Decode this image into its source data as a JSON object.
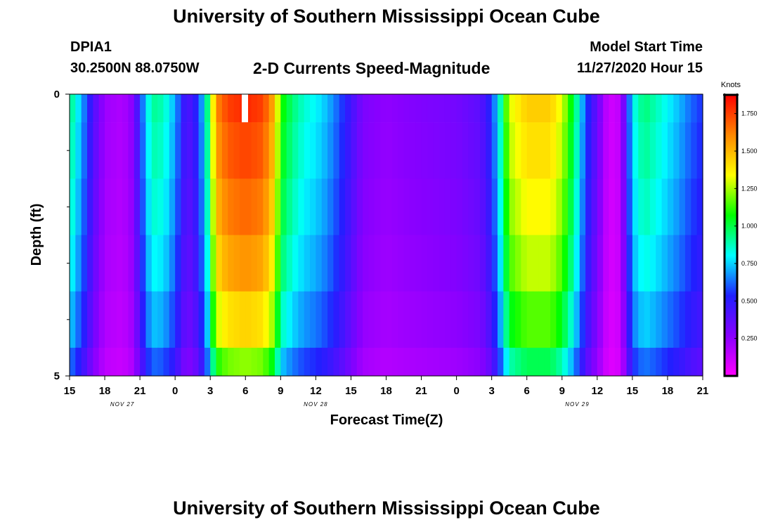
{
  "header": {
    "title": "University of Southern Mississippi Ocean Cube",
    "station": "DPIA1",
    "coordinates": "30.2500N 88.0750W",
    "chart_title": "2-D Currents Speed-Magnitude",
    "model_start_label": "Model Start Time",
    "model_start_value": "11/27/2020 Hour 15"
  },
  "footer": {
    "title": "University of Southern Mississippi Ocean Cube"
  },
  "chart_data": {
    "type": "heatmap",
    "title": "2-D Currents Speed-Magnitude",
    "xlabel": "Forecast Time(Z)",
    "ylabel": "Depth (ft)",
    "x_start_hour": 15,
    "x_end_hour": 69,
    "x_ticks": [
      {
        "hour": 15,
        "label": "15"
      },
      {
        "hour": 18,
        "label": "18"
      },
      {
        "hour": 21,
        "label": "21"
      },
      {
        "hour": 24,
        "label": "0"
      },
      {
        "hour": 27,
        "label": "3"
      },
      {
        "hour": 30,
        "label": "6"
      },
      {
        "hour": 33,
        "label": "9"
      },
      {
        "hour": 36,
        "label": "12"
      },
      {
        "hour": 39,
        "label": "15"
      },
      {
        "hour": 42,
        "label": "18"
      },
      {
        "hour": 45,
        "label": "21"
      },
      {
        "hour": 48,
        "label": "0"
      },
      {
        "hour": 51,
        "label": "3"
      },
      {
        "hour": 54,
        "label": "6"
      },
      {
        "hour": 57,
        "label": "9"
      },
      {
        "hour": 60,
        "label": "12"
      },
      {
        "hour": 63,
        "label": "15"
      },
      {
        "hour": 66,
        "label": "18"
      },
      {
        "hour": 69,
        "label": "21"
      }
    ],
    "date_labels": [
      {
        "hour": 19.5,
        "label": "NOV 27"
      },
      {
        "hour": 36,
        "label": "NOV 28"
      },
      {
        "hour": 58.3,
        "label": "NOV 29"
      }
    ],
    "y_range": [
      0,
      5
    ],
    "y_tick_labels": [
      {
        "value": 0,
        "label": "0"
      },
      {
        "value": 5,
        "label": "5"
      }
    ],
    "y_minor_ticks": [
      1,
      2,
      3,
      4
    ],
    "depth_levels": 5,
    "speed_profile_knots": [
      {
        "hour": 15.0,
        "v": 0.95
      },
      {
        "hour": 16.0,
        "v": 0.72
      },
      {
        "hour": 17.0,
        "v": 0.42
      },
      {
        "hour": 18.0,
        "v": 0.22
      },
      {
        "hour": 19.5,
        "v": 0.18
      },
      {
        "hour": 20.5,
        "v": 0.28
      },
      {
        "hour": 21.0,
        "v": 0.55
      },
      {
        "hour": 22.0,
        "v": 0.92
      },
      {
        "hour": 23.0,
        "v": 0.88
      },
      {
        "hour": 24.0,
        "v": 0.7
      },
      {
        "hour": 25.0,
        "v": 0.4
      },
      {
        "hour": 26.0,
        "v": 0.55
      },
      {
        "hour": 26.8,
        "v": 0.95
      },
      {
        "hour": 27.5,
        "v": 1.6
      },
      {
        "hour": 28.5,
        "v": 1.75
      },
      {
        "hour": 30.0,
        "v": 1.8
      },
      {
        "hour": 31.5,
        "v": 1.75
      },
      {
        "hour": 32.5,
        "v": 1.5
      },
      {
        "hour": 33.0,
        "v": 1.1
      },
      {
        "hour": 34.0,
        "v": 0.95
      },
      {
        "hour": 35.0,
        "v": 0.85
      },
      {
        "hour": 36.0,
        "v": 0.8
      },
      {
        "hour": 37.0,
        "v": 0.72
      },
      {
        "hour": 38.0,
        "v": 0.6
      },
      {
        "hour": 39.0,
        "v": 0.45
      },
      {
        "hour": 40.0,
        "v": 0.3
      },
      {
        "hour": 42.0,
        "v": 0.25
      },
      {
        "hour": 44.0,
        "v": 0.28
      },
      {
        "hour": 46.0,
        "v": 0.3
      },
      {
        "hour": 48.0,
        "v": 0.32
      },
      {
        "hour": 50.0,
        "v": 0.38
      },
      {
        "hour": 51.0,
        "v": 0.55
      },
      {
        "hour": 51.8,
        "v": 0.9
      },
      {
        "hour": 52.5,
        "v": 1.3
      },
      {
        "hour": 54.0,
        "v": 1.45
      },
      {
        "hour": 56.0,
        "v": 1.45
      },
      {
        "hour": 57.0,
        "v": 1.3
      },
      {
        "hour": 58.0,
        "v": 1.0
      },
      {
        "hour": 59.0,
        "v": 0.6
      },
      {
        "hour": 60.0,
        "v": 0.35
      },
      {
        "hour": 61.0,
        "v": 0.1
      },
      {
        "hour": 62.0,
        "v": 0.15
      },
      {
        "hour": 63.0,
        "v": 0.8
      },
      {
        "hour": 64.0,
        "v": 0.95
      },
      {
        "hour": 65.0,
        "v": 0.88
      },
      {
        "hour": 66.0,
        "v": 0.8
      },
      {
        "hour": 67.0,
        "v": 0.72
      },
      {
        "hour": 68.0,
        "v": 0.62
      },
      {
        "hour": 69.0,
        "v": 0.55
      }
    ],
    "depth_attenuation": [
      1.0,
      0.97,
      0.93,
      0.88,
      0.8,
      0.68
    ],
    "colorbar": {
      "unit_label": "Knots",
      "min": 0.0,
      "max": 1.875,
      "ticks": [
        {
          "value": 0.25,
          "label": "0.250"
        },
        {
          "value": 0.5,
          "label": "0.500"
        },
        {
          "value": 0.75,
          "label": "0.750"
        },
        {
          "value": 1.0,
          "label": "1.000"
        },
        {
          "value": 1.25,
          "label": "1.250"
        },
        {
          "value": 1.5,
          "label": "1.500"
        },
        {
          "value": 1.75,
          "label": "1.750"
        }
      ],
      "stops": [
        "#ff00ff",
        "#8800ff",
        "#2020ff",
        "#00ffff",
        "#00ff00",
        "#ffff00",
        "#ff8800",
        "#ff0000"
      ]
    }
  }
}
